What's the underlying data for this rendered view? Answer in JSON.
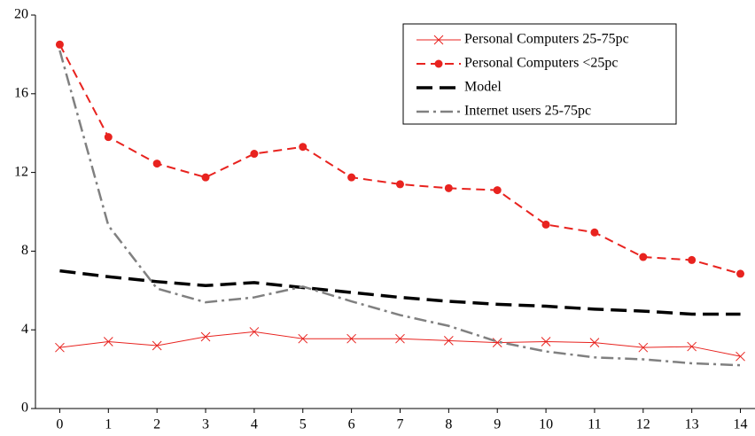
{
  "chart_data": {
    "type": "line",
    "x": [
      0,
      1,
      2,
      3,
      4,
      5,
      6,
      7,
      8,
      9,
      10,
      11,
      12,
      13,
      14
    ],
    "xlim": [
      -0.5,
      14.3
    ],
    "xticks": [
      0,
      1,
      2,
      3,
      4,
      5,
      6,
      7,
      8,
      9,
      10,
      11,
      12,
      13,
      14
    ],
    "ylim": [
      0,
      20
    ],
    "yticks": [
      0,
      4,
      8,
      12,
      16,
      20
    ],
    "legend": "top-right",
    "series": [
      {
        "name": "Personal Computers 25-75pc",
        "color": "#e8231f",
        "dash": "solid",
        "width": 1,
        "marker": "x",
        "values": [
          3.1,
          3.4,
          3.2,
          3.65,
          3.9,
          3.55,
          3.55,
          3.55,
          3.45,
          3.35,
          3.4,
          3.35,
          3.1,
          3.15,
          2.65
        ]
      },
      {
        "name": "Personal Computers <25pc",
        "color": "#e8231f",
        "dash": "dash",
        "width": 2,
        "marker": "circle",
        "values": [
          18.5,
          13.8,
          12.45,
          11.75,
          12.95,
          13.3,
          11.75,
          11.4,
          11.2,
          11.1,
          9.35,
          8.95,
          7.7,
          7.55,
          6.85
        ]
      },
      {
        "name": "Model",
        "color": "#000000",
        "dash": "longdash",
        "width": 3.5,
        "marker": "none",
        "values": [
          7.0,
          6.7,
          6.45,
          6.25,
          6.4,
          6.15,
          5.9,
          5.65,
          5.45,
          5.3,
          5.2,
          5.05,
          4.95,
          4.8,
          4.8
        ]
      },
      {
        "name": "Internet users 25-75pc",
        "color": "#808080",
        "dash": "dashdot",
        "width": 2.5,
        "marker": "none",
        "values": [
          18.2,
          9.3,
          6.1,
          5.4,
          5.65,
          6.2,
          5.45,
          4.75,
          4.2,
          3.4,
          2.9,
          2.6,
          2.5,
          2.3,
          2.2
        ]
      }
    ]
  }
}
